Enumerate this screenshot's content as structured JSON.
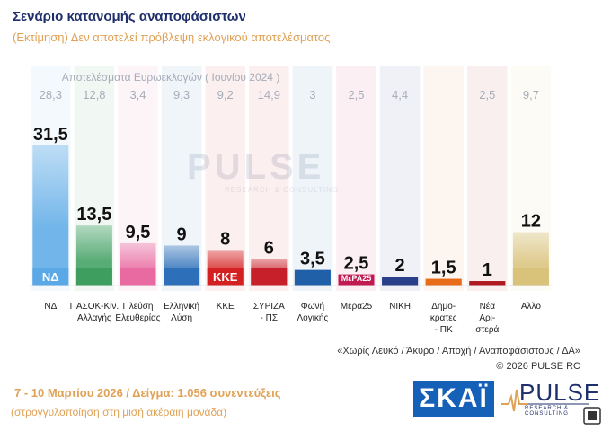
{
  "header": {
    "title": "Σενάριο κατανομής αναποφάσιστων",
    "subtitle": "(Εκτίμηση)   Δεν αποτελεί πρόβλεψη εκλογικού αποτελέσματος"
  },
  "watermark": {
    "text": "PULSE",
    "sub": "RESEARCH & CONSULTING"
  },
  "chart_data": {
    "type": "bar",
    "title": "Σενάριο κατανομής αναποφάσιστων",
    "reference_label": "Αποτελέσματα Ευρωεκλογών  ( Ιουνίου 2024 )",
    "categories": [
      "ΝΔ",
      "ΠΑΣΟΚ-Κιν. Αλλαγής",
      "Πλεύση Ελευθερίας",
      "Ελληνική Λύση",
      "ΚΚΕ",
      "ΣΥΡΙΖΑ - ΠΣ",
      "Φωνή Λογικής",
      "Μερα25",
      "ΝΙΚΗ",
      "Δημο- κρατες - ΠΚ",
      "Νέα Αρι- στερά",
      "Αλλο"
    ],
    "category_lines": [
      [
        "ΝΔ"
      ],
      [
        "ΠΑΣΟΚ-Κιν.",
        "Αλλαγής"
      ],
      [
        "Πλεύση",
        "Ελευθερίας"
      ],
      [
        "Ελληνική",
        "Λύση"
      ],
      [
        "ΚΚΕ"
      ],
      [
        "ΣΥΡΙΖΑ",
        "- ΠΣ"
      ],
      [
        "Φωνή",
        "Λογικής"
      ],
      [
        "Μερα25"
      ],
      [
        "ΝΙΚΗ"
      ],
      [
        "Δημο-",
        "κρατες",
        "- ΠΚ"
      ],
      [
        "Νέα",
        "Αρι-",
        "στερά"
      ],
      [
        "Αλλο"
      ]
    ],
    "values": [
      31.5,
      13.5,
      9.5,
      9,
      8,
      6,
      3.5,
      2.5,
      2,
      1.5,
      1,
      12
    ],
    "value_labels": [
      "31,5",
      "13,5",
      "9,5",
      "9",
      "8",
      "6",
      "3,5",
      "2,5",
      "2",
      "1,5",
      "1",
      "12"
    ],
    "euro2024_labels": [
      "28,3",
      "12,8",
      "3,4",
      "9,3",
      "9,2",
      "14,9",
      "3",
      "2,5",
      "4,4",
      "",
      "2,5",
      "9,7"
    ],
    "logo_texts": [
      "ΝΔ",
      "",
      "",
      "",
      "ΚΚΕ",
      "",
      "",
      "ΜέΡΑ25",
      "",
      "",
      "",
      ""
    ],
    "colors": [
      "#5aa9e6",
      "#3d9e5f",
      "#e86aa0",
      "#2d6fb8",
      "#d42020",
      "#c8202a",
      "#2060a8",
      "#c01a50",
      "#2a3f8a",
      "#e86b1a",
      "#b01820",
      "#d9c27a"
    ],
    "ylim": [
      0,
      35
    ]
  },
  "notes": {
    "line1": "«Χωρίς Λευκό / Άκυρο / Αποχή / Αναποφάσιστους / ΔΑ»",
    "line2": "©  2026  PULSE RC"
  },
  "footer": {
    "fieldwork": "7 - 10  Μαρτίου 2026  /  Δείγμα:  1.056 συνεντεύξεις",
    "rounding": "(στρογγυλοποίηση στη μισή ακέραιη μονάδα)"
  },
  "logos": {
    "skai": "ΣΚΑΪ",
    "pulse": "PULSE",
    "pulse_sub": "RESEARCH & CONSULTING"
  }
}
